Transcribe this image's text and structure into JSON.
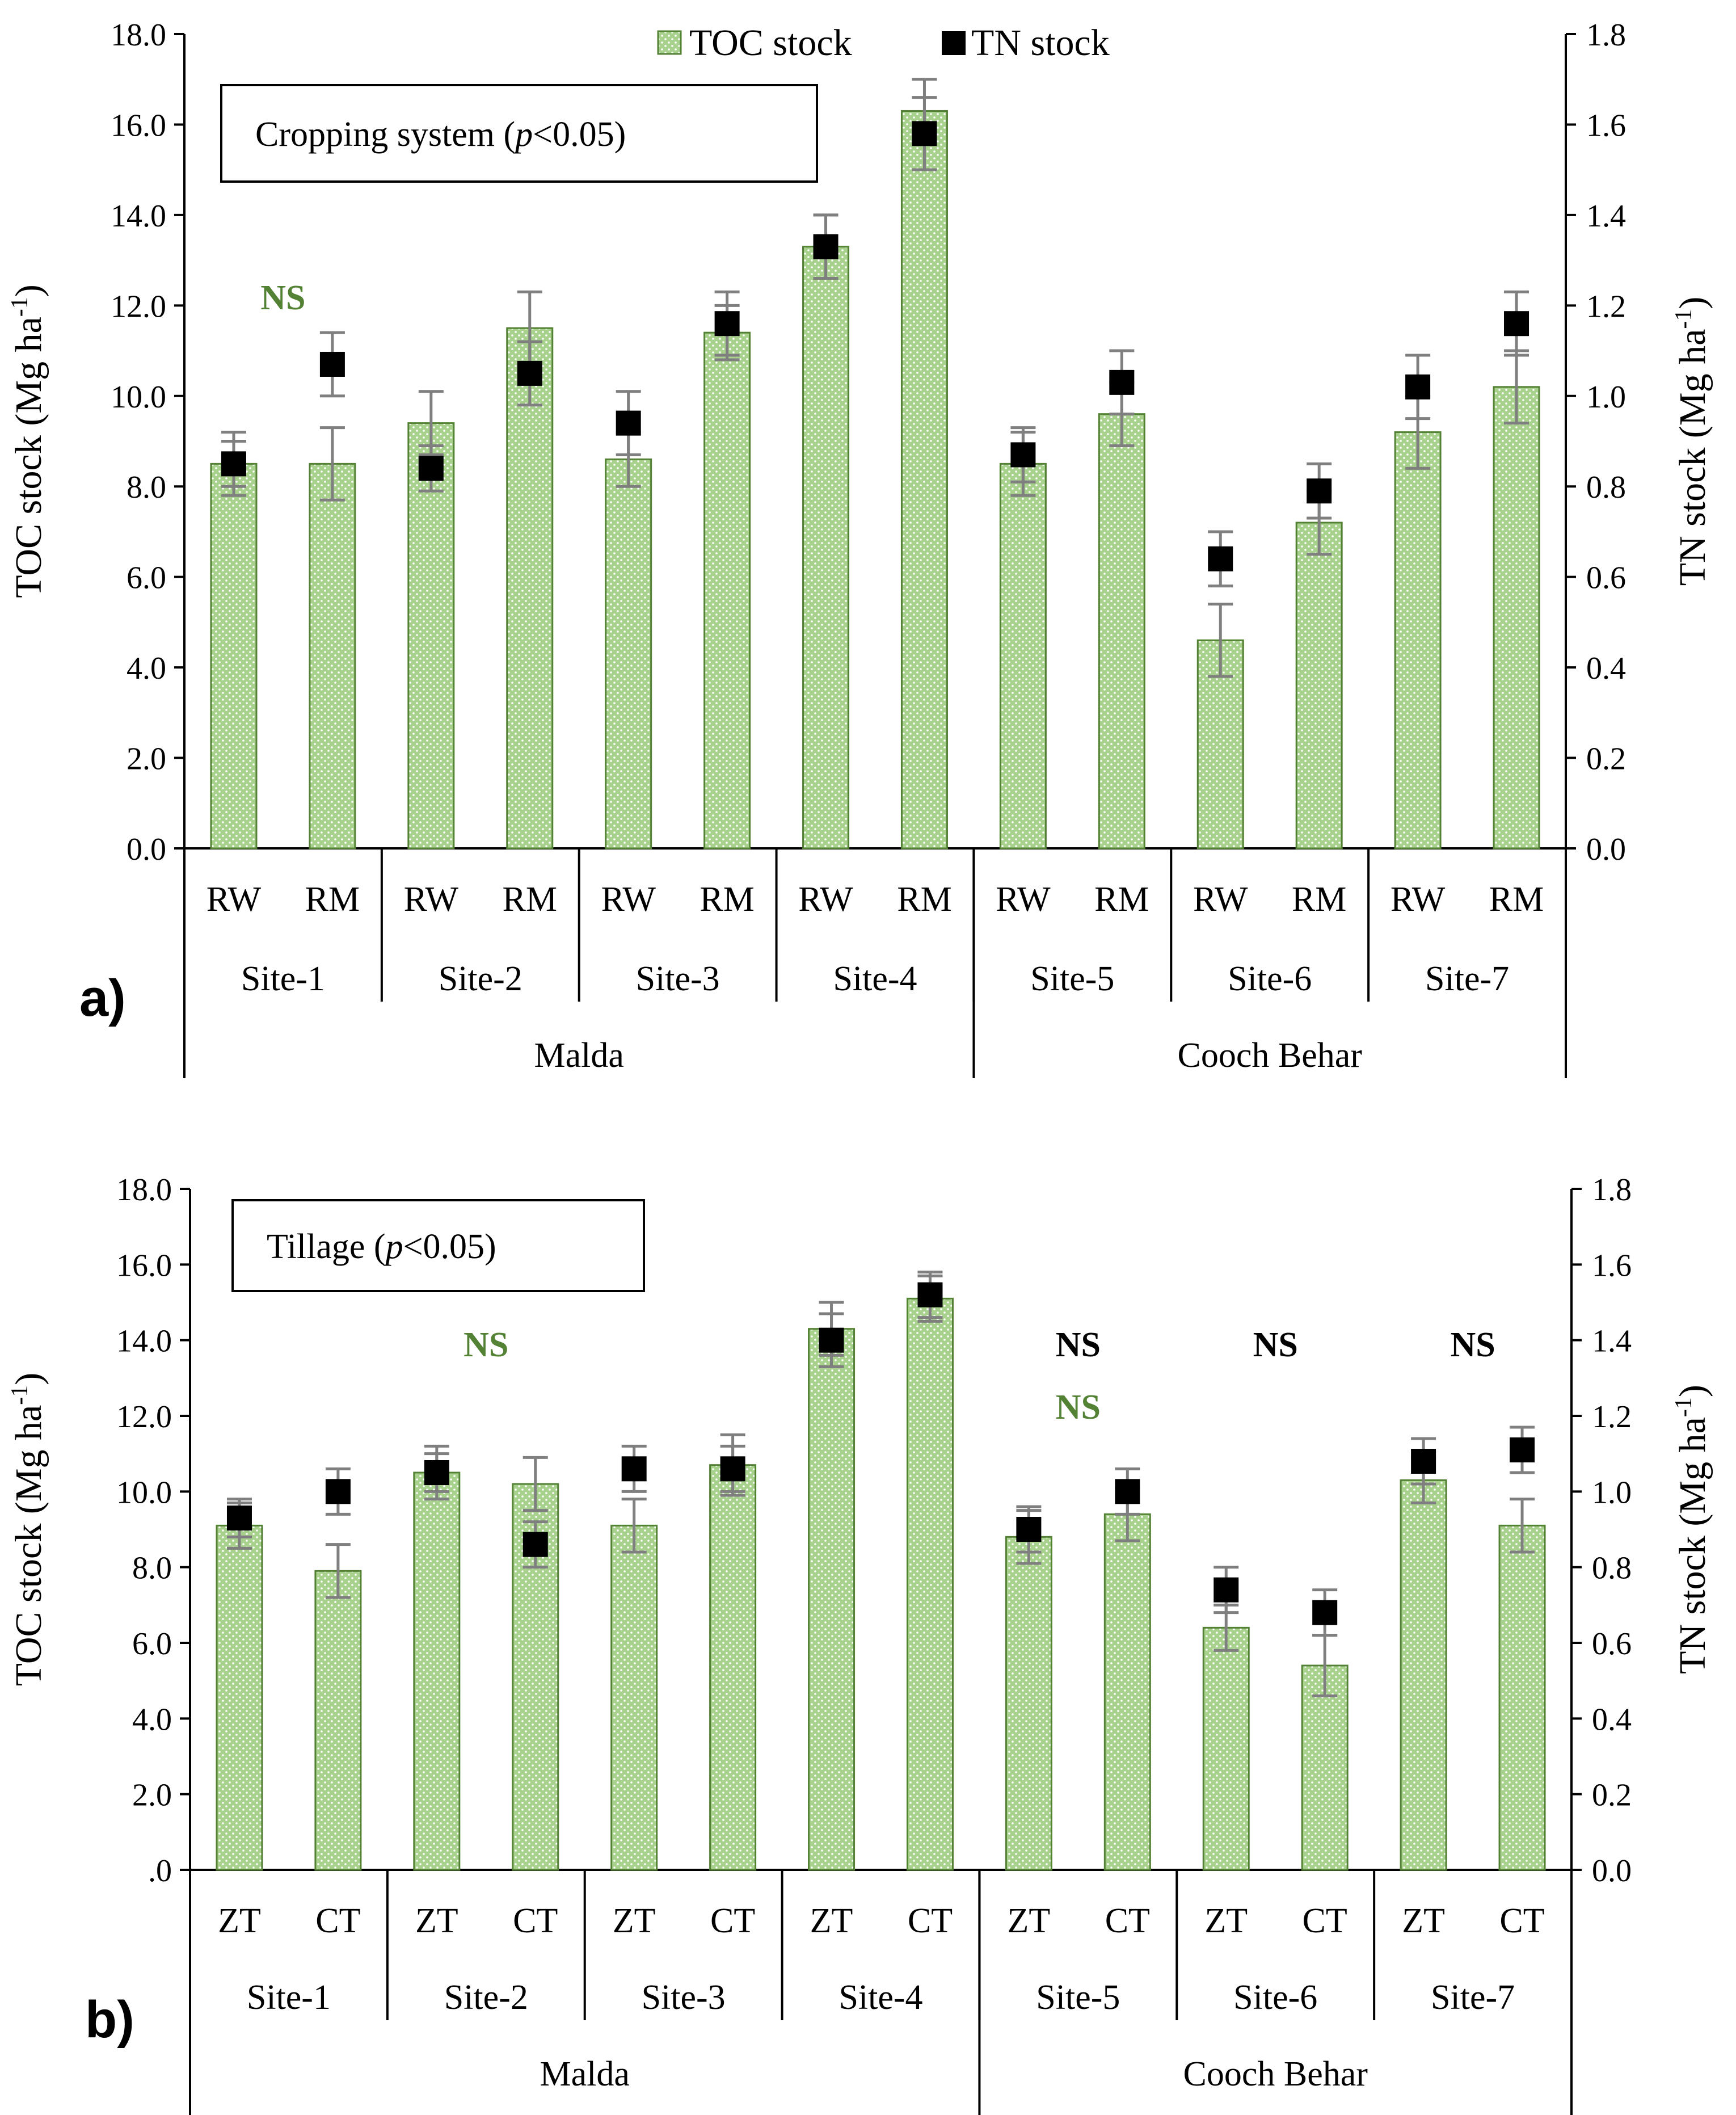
{
  "legend": {
    "toc": "TOC stock",
    "tn": "TN stock"
  },
  "colors": {
    "bar": "#a9d18e",
    "bar_dot": "#ffffff",
    "tn_marker": "#000000",
    "error": "#7f7f7f",
    "ns_green": "#548235",
    "ns_black": "#000000"
  },
  "chart_data": [
    {
      "type": "bar",
      "panel": "a)",
      "box_label": {
        "pre": "Cropping system (",
        "italic": "p",
        "post": "<0.05)"
      },
      "yleft": {
        "label": "TOC stock (Mg ha",
        "sup": "-1",
        "close": ")",
        "range": [
          0,
          18
        ],
        "ticks": [
          "0.0",
          "2.0",
          "4.0",
          "6.0",
          "8.0",
          "10.0",
          "12.0",
          "14.0",
          "16.0",
          "18.0"
        ]
      },
      "yright": {
        "label": "TN stock (Mg ha",
        "sup": "-1",
        "close": ")",
        "range": [
          0,
          1.8
        ],
        "ticks": [
          "0.0",
          "0.2",
          "0.4",
          "0.6",
          "0.8",
          "1.0",
          "1.2",
          "1.4",
          "1.6",
          "1.8"
        ]
      },
      "categories": [
        "RW",
        "RM",
        "RW",
        "RM",
        "RW",
        "RM",
        "RW",
        "RM",
        "RW",
        "RM",
        "RW",
        "RM",
        "RW",
        "RM"
      ],
      "sites": [
        "Site-1",
        "Site-2",
        "Site-3",
        "Site-4",
        "Site-5",
        "Site-6",
        "Site-7"
      ],
      "regions": [
        {
          "name": "Malda",
          "sites": 4
        },
        {
          "name": "Cooch Behar",
          "sites": 3
        }
      ],
      "series": [
        {
          "name": "TOC stock",
          "axis": "left",
          "values": [
            8.5,
            8.5,
            9.4,
            11.5,
            8.6,
            11.4,
            13.3,
            16.3,
            8.5,
            9.6,
            4.6,
            7.2,
            9.2,
            10.2
          ],
          "errors": [
            0.7,
            0.8,
            0.7,
            0.8,
            0.6,
            0.6,
            0.7,
            0.7,
            0.7,
            0.7,
            0.8,
            0.7,
            0.8,
            0.8
          ]
        },
        {
          "name": "TN stock",
          "axis": "right",
          "values": [
            0.85,
            1.07,
            0.84,
            1.05,
            0.94,
            1.16,
            1.33,
            1.58,
            0.87,
            1.03,
            0.64,
            0.79,
            1.02,
            1.16
          ],
          "errors": [
            0.05,
            0.07,
            0.05,
            0.07,
            0.07,
            0.07,
            0.07,
            0.08,
            0.06,
            0.07,
            0.06,
            0.06,
            0.07,
            0.07
          ]
        }
      ],
      "annotations": [
        {
          "text": "NS",
          "color": "green",
          "group": 0
        }
      ]
    },
    {
      "type": "bar",
      "panel": "b)",
      "box_label": {
        "pre": "Tillage (",
        "italic": "p",
        "post": "<0.05)"
      },
      "yleft": {
        "label": "TOC stock (Mg ha",
        "sup": "-1",
        "close": ")",
        "range": [
          0,
          18
        ],
        "ticks": [
          ".0",
          "2.0",
          "4.0",
          "6.0",
          "8.0",
          "10.0",
          "12.0",
          "14.0",
          "16.0",
          "18.0"
        ]
      },
      "yright": {
        "label": "TN stock (Mg ha",
        "sup": "-1",
        "close": ")",
        "range": [
          0,
          1.8
        ],
        "ticks": [
          "0.0",
          "0.2",
          "0.4",
          "0.6",
          "0.8",
          "1.0",
          "1.2",
          "1.4",
          "1.6",
          "1.8"
        ]
      },
      "categories": [
        "ZT",
        "CT",
        "ZT",
        "CT",
        "ZT",
        "CT",
        "ZT",
        "CT",
        "ZT",
        "CT",
        "ZT",
        "CT",
        "ZT",
        "CT"
      ],
      "sites": [
        "Site-1",
        "Site-2",
        "Site-3",
        "Site-4",
        "Site-5",
        "Site-6",
        "Site-7"
      ],
      "regions": [
        {
          "name": "Malda",
          "sites": 4
        },
        {
          "name": "Cooch Behar",
          "sites": 3
        }
      ],
      "series": [
        {
          "name": "TOC stock",
          "axis": "left",
          "values": [
            9.1,
            7.9,
            10.5,
            10.2,
            9.1,
            10.7,
            14.3,
            15.1,
            8.8,
            9.4,
            6.4,
            5.4,
            10.3,
            9.1
          ],
          "errors": [
            0.6,
            0.7,
            0.7,
            0.7,
            0.7,
            0.8,
            0.7,
            0.6,
            0.7,
            0.7,
            0.6,
            0.8,
            0.6,
            0.7
          ]
        },
        {
          "name": "TN stock",
          "axis": "right",
          "values": [
            0.93,
            1.0,
            1.05,
            0.86,
            1.06,
            1.06,
            1.4,
            1.52,
            0.9,
            1.0,
            0.74,
            0.68,
            1.08,
            1.11
          ],
          "errors": [
            0.05,
            0.06,
            0.05,
            0.06,
            0.06,
            0.06,
            0.07,
            0.06,
            0.06,
            0.06,
            0.06,
            0.06,
            0.06,
            0.06
          ]
        }
      ],
      "annotations": [
        {
          "text": "NS",
          "color": "green",
          "group": 1,
          "level": 0
        },
        {
          "text": "NS",
          "color": "black",
          "group": 4,
          "level": 0
        },
        {
          "text": "NS",
          "color": "green",
          "group": 4,
          "level": 1
        },
        {
          "text": "NS",
          "color": "black",
          "group": 5,
          "level": 0
        },
        {
          "text": "NS",
          "color": "black",
          "group": 6,
          "level": 0
        }
      ]
    }
  ]
}
